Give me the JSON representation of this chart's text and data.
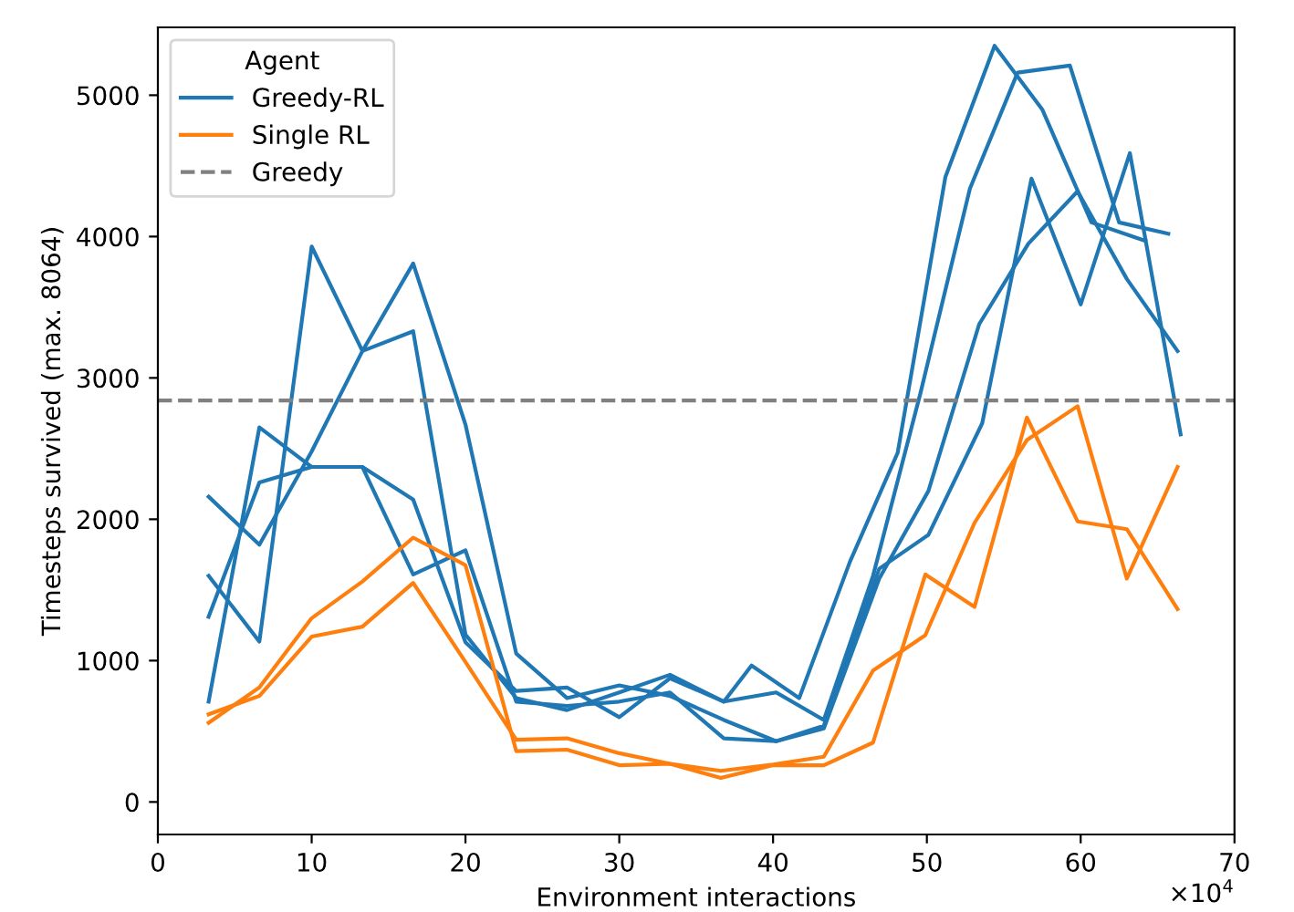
{
  "chart_data": {
    "type": "line",
    "xlabel": "Environment interactions",
    "ylabel": "Timesteps survived (max. 8064)",
    "legend_title": "Agent",
    "legend": "top left",
    "grid": false,
    "line_style": "solid",
    "marker": "none",
    "xlim": [
      0,
      70
    ],
    "xticks": [
      0,
      10,
      20,
      30,
      40,
      50,
      60,
      70
    ],
    "ylim": [
      -230,
      5480
    ],
    "yticks": [
      0,
      1000,
      2000,
      3000,
      4000,
      5000
    ],
    "annotations": [
      "×10$^{4}$"
    ],
    "ref_lines": [
      {
        "axis": "y",
        "value": 2840,
        "label": "Greedy",
        "color": "#808080",
        "line_style": "dashed"
      }
    ],
    "series": [
      {
        "name": "Greedy-RL",
        "color": "#1f77b4",
        "x": [
          3.3,
          6.6,
          10,
          13.3,
          16.6,
          20,
          23.3,
          26.6,
          30,
          33.3,
          36.8,
          40.2,
          43.3,
          46.9,
          50.1,
          53.6,
          56.8,
          60,
          63.2,
          66.5
        ],
        "values": [
          1600,
          1135,
          3930,
          3190,
          3810,
          2670,
          1050,
          735,
          825,
          750,
          580,
          430,
          540,
          1650,
          1890,
          2680,
          4410,
          3520,
          4590,
          2600
        ]
      },
      {
        "color": "#1f77b4",
        "x": [
          3.3,
          6.6,
          10,
          13.3,
          16.6,
          20,
          23.3,
          26.6,
          30,
          33.3,
          36.8,
          38.6,
          41.7,
          45.0,
          48.1,
          51.2,
          54.4,
          57.5,
          60.7,
          64.2
        ],
        "values": [
          2160,
          1820,
          2480,
          3190,
          3330,
          1185,
          735,
          650,
          775,
          900,
          710,
          965,
          735,
          1700,
          2470,
          4420,
          5350,
          4900,
          4100,
          3970
        ]
      },
      {
        "color": "#1f77b4",
        "x": [
          3.3,
          6.6,
          10,
          13.3,
          16.6,
          20,
          23.3,
          26.6,
          30,
          33.3,
          36.8,
          40.2,
          43.3,
          46.5,
          49.6,
          52.8,
          55.9,
          59.3,
          62.5,
          65.7
        ],
        "values": [
          1310,
          2260,
          2370,
          2370,
          2140,
          1130,
          785,
          810,
          600,
          875,
          710,
          775,
          580,
          1600,
          2900,
          4340,
          5160,
          5210,
          4100,
          4020
        ]
      },
      {
        "color": "#1f77b4",
        "x": [
          3.3,
          6.6,
          10,
          13.3,
          16.6,
          20,
          23.3,
          26.6,
          30,
          33.3,
          36.8,
          40.2,
          43.3,
          46.9,
          50.1,
          53.4,
          56.6,
          59.8,
          63.0,
          66.3
        ],
        "values": [
          710,
          2650,
          2370,
          2370,
          1610,
          1780,
          710,
          680,
          710,
          775,
          450,
          430,
          520,
          1580,
          2200,
          3380,
          3950,
          4320,
          3700,
          3190
        ]
      },
      {
        "name": "Single RL",
        "color": "#ff7f0e",
        "x": [
          3.3,
          6.6,
          10,
          13.3,
          16.6,
          20,
          23.3,
          26.6,
          30,
          33.3,
          36.6,
          40,
          43.3,
          46.5,
          49.9,
          53.1,
          56.5,
          59.8,
          63.0,
          66.3
        ],
        "values": [
          560,
          810,
          1300,
          1560,
          1870,
          1675,
          360,
          370,
          260,
          270,
          170,
          260,
          260,
          420,
          1610,
          1380,
          2720,
          1985,
          1930,
          1365
        ]
      },
      {
        "color": "#ff7f0e",
        "x": [
          3.3,
          6.6,
          10,
          13.3,
          16.6,
          20,
          23.3,
          26.6,
          30,
          33.3,
          36.6,
          40,
          43.3,
          46.5,
          49.9,
          53.1,
          56.5,
          59.8,
          63.0,
          66.3
        ],
        "values": [
          620,
          750,
          1170,
          1240,
          1550,
          990,
          440,
          450,
          345,
          270,
          220,
          265,
          320,
          930,
          1180,
          1975,
          2560,
          2800,
          1580,
          2370
        ]
      }
    ]
  }
}
